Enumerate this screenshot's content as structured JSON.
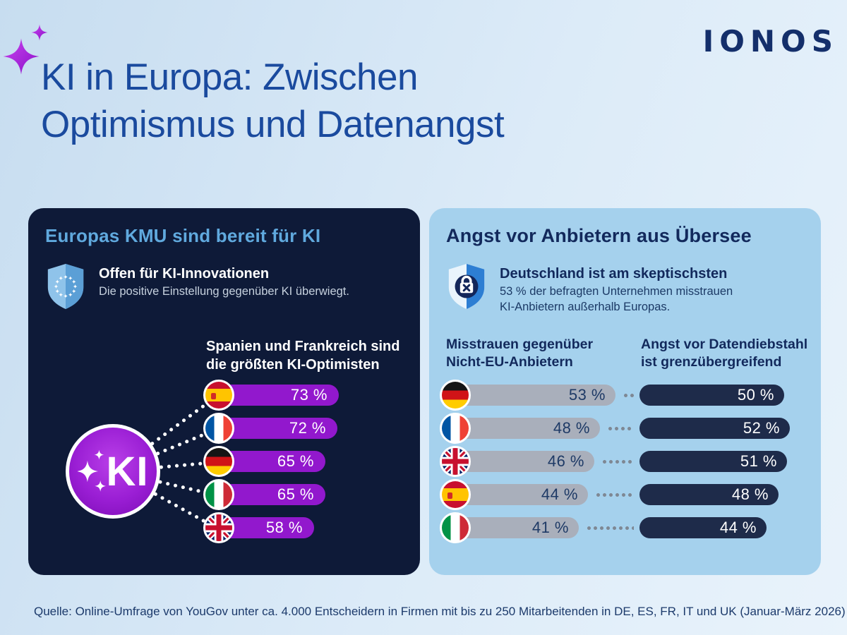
{
  "page": {
    "title_line1": "KI in Europa: Zwischen",
    "title_line2": "Optimismus und Datenangst",
    "brand": "IONOS",
    "source": "Quelle: Online-Umfrage von YouGov unter ca. 4.000 Entscheidern in Firmen mit bis zu 250 Mitarbeitenden in DE, ES, FR, IT und UK (Januar-März 2026)"
  },
  "left_panel": {
    "heading": "Europas KMU sind bereit für KI",
    "callout_title": "Offen für KI-Innovationen",
    "callout_body": "Die positive Einstellung gegenüber KI überwiegt.",
    "subheading_line1": "Spanien und Frankreich sind",
    "subheading_line2": "die größten KI-Optimisten",
    "ki_badge": "KI",
    "rows": [
      {
        "flag": "es",
        "country": "Spanien",
        "value": 73,
        "label": "73 %"
      },
      {
        "flag": "fr",
        "country": "Frankreich",
        "value": 72,
        "label": "72 %"
      },
      {
        "flag": "de",
        "country": "Deutschland",
        "value": 65,
        "label": "65 %"
      },
      {
        "flag": "it",
        "country": "Italien",
        "value": 65,
        "label": "65 %"
      },
      {
        "flag": "gb",
        "country": "Großbritannien",
        "value": 58,
        "label": "58 %"
      }
    ]
  },
  "right_panel": {
    "heading": "Angst vor Anbietern aus Übersee",
    "callout_title": "Deutschland ist am skeptischsten",
    "callout_body_line1": "53 % der befragten Unternehmen misstrauen",
    "callout_body_line2": "KI-Anbietern außerhalb Europas.",
    "col1_line1": "Misstrauen gegenüber",
    "col1_line2": "Nicht-EU-Anbietern",
    "col2_line1": "Angst vor Datendiebstahl",
    "col2_line2": "ist grenzübergreifend",
    "rows": [
      {
        "flag": "de",
        "country": "Deutschland",
        "distrust": 53,
        "distrust_label": "53 %",
        "datatheft": 50,
        "datatheft_label": "50 %"
      },
      {
        "flag": "fr",
        "country": "Frankreich",
        "distrust": 48,
        "distrust_label": "48 %",
        "datatheft": 52,
        "datatheft_label": "52 %"
      },
      {
        "flag": "gb",
        "country": "Großbritannien",
        "distrust": 46,
        "distrust_label": "46 %",
        "datatheft": 51,
        "datatheft_label": "51 %"
      },
      {
        "flag": "es",
        "country": "Spanien",
        "distrust": 44,
        "distrust_label": "44 %",
        "datatheft": 48,
        "datatheft_label": "48 %"
      },
      {
        "flag": "it",
        "country": "Italien",
        "distrust": 41,
        "distrust_label": "41 %",
        "datatheft": 44,
        "datatheft_label": "44 %"
      }
    ]
  },
  "chart_data": [
    {
      "type": "bar",
      "orientation": "horizontal",
      "panel": "Europas KMU sind bereit für KI",
      "title": "Spanien und Frankreich sind die größten KI-Optimisten",
      "categories": [
        "Spanien",
        "Frankreich",
        "Deutschland",
        "Italien",
        "Großbritannien"
      ],
      "values": [
        73,
        72,
        65,
        65,
        58
      ],
      "unit": "%",
      "bar_color": "#9218cd"
    },
    {
      "type": "bar",
      "orientation": "horizontal",
      "panel": "Angst vor Anbietern aus Übersee",
      "categories": [
        "Deutschland",
        "Frankreich",
        "Großbritannien",
        "Spanien",
        "Italien"
      ],
      "series": [
        {
          "name": "Misstrauen gegenüber Nicht-EU-Anbietern",
          "values": [
            53,
            48,
            46,
            44,
            41
          ],
          "color": "#a9afbb"
        },
        {
          "name": "Angst vor Datendiebstahl ist grenzübergreifend",
          "values": [
            50,
            52,
            51,
            48,
            44
          ],
          "color": "#1e2b4a"
        }
      ],
      "unit": "%"
    }
  ],
  "colors": {
    "background_start": "#c7ddf0",
    "background_end": "#e9f3fb",
    "title_blue": "#1a4a9e",
    "brand_navy": "#142f6b",
    "left_panel_bg": "#0e1a38",
    "left_heading_blue": "#60a9de",
    "purple_bar": "#9218cd",
    "right_panel_bg": "#a5d1ed",
    "navy_text": "#12295c",
    "gray_bar": "#a9afbb",
    "dark_bar": "#1e2b4a"
  }
}
